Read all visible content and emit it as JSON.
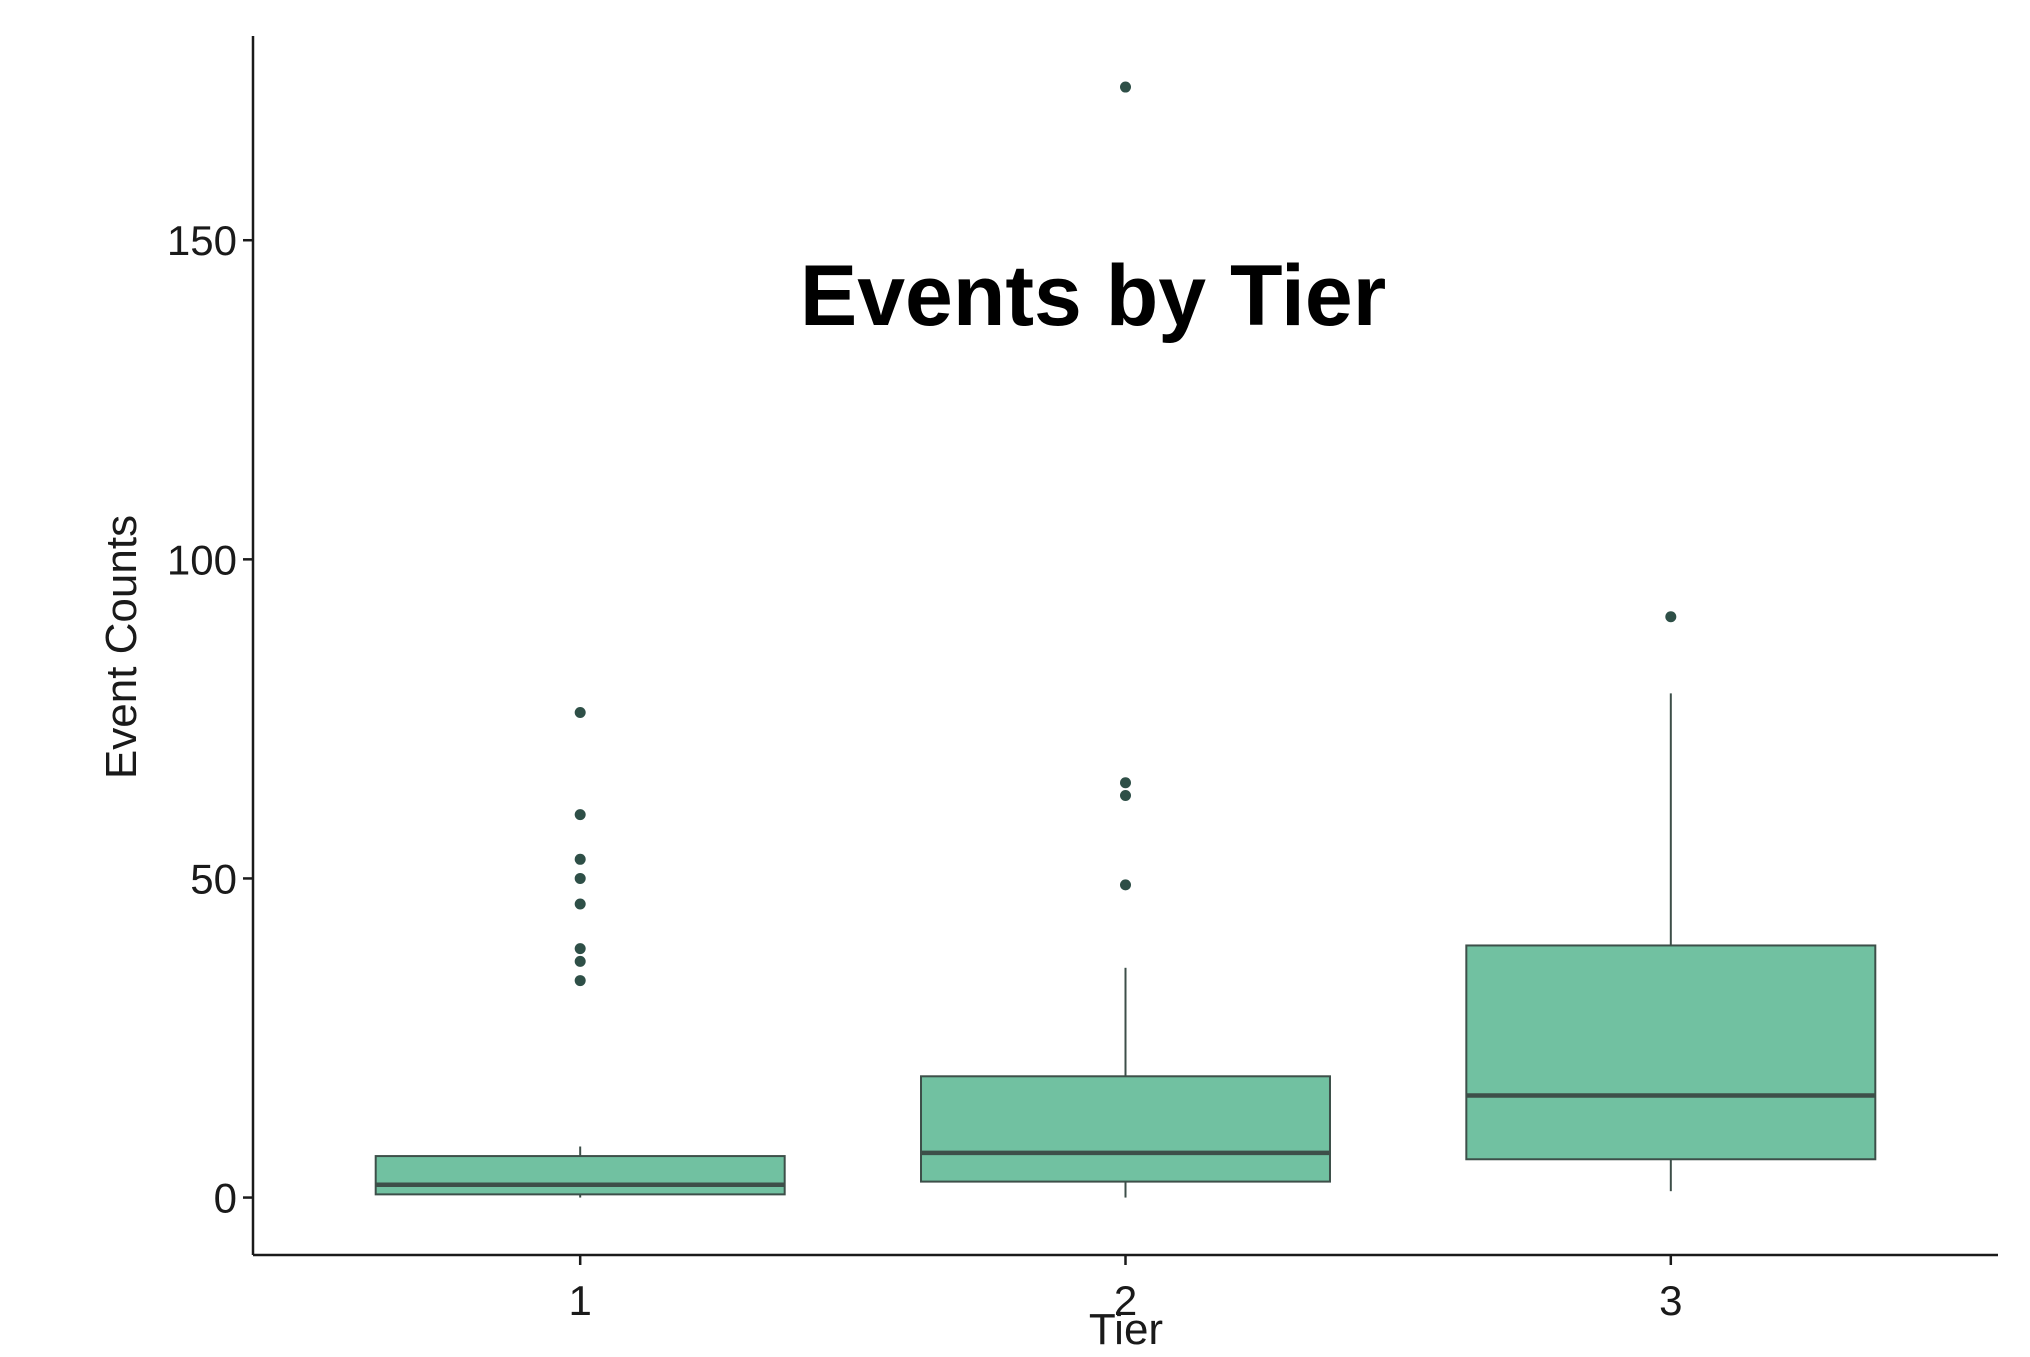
{
  "chart_data": {
    "type": "box",
    "title": "Events by Tier",
    "xlabel": "Tier",
    "ylabel": "Event Counts",
    "categories": [
      "1",
      "2",
      "3"
    ],
    "ylim": [
      -9,
      182
    ],
    "yticks": [
      0,
      50,
      100,
      150
    ],
    "grid": false,
    "legend": "none",
    "colors": {
      "fill": "#71c1a1",
      "stroke": "#3d4f49",
      "outlier": "#2e4f47",
      "axis": "#1a1a1a"
    },
    "boxes": [
      {
        "category": "1",
        "whisker_low": 0,
        "q1": 0.5,
        "median": 2,
        "q3": 6.5,
        "whisker_high": 8,
        "outliers": [
          76,
          60,
          53,
          50,
          46,
          39,
          37,
          34
        ]
      },
      {
        "category": "2",
        "whisker_low": 0,
        "q1": 2.5,
        "median": 7,
        "q3": 19,
        "whisker_high": 36,
        "outliers": [
          174,
          65,
          63,
          49
        ]
      },
      {
        "category": "3",
        "whisker_low": 1,
        "q1": 6,
        "median": 16,
        "q3": 39.5,
        "whisker_high": 79,
        "outliers": [
          91
        ]
      }
    ]
  }
}
